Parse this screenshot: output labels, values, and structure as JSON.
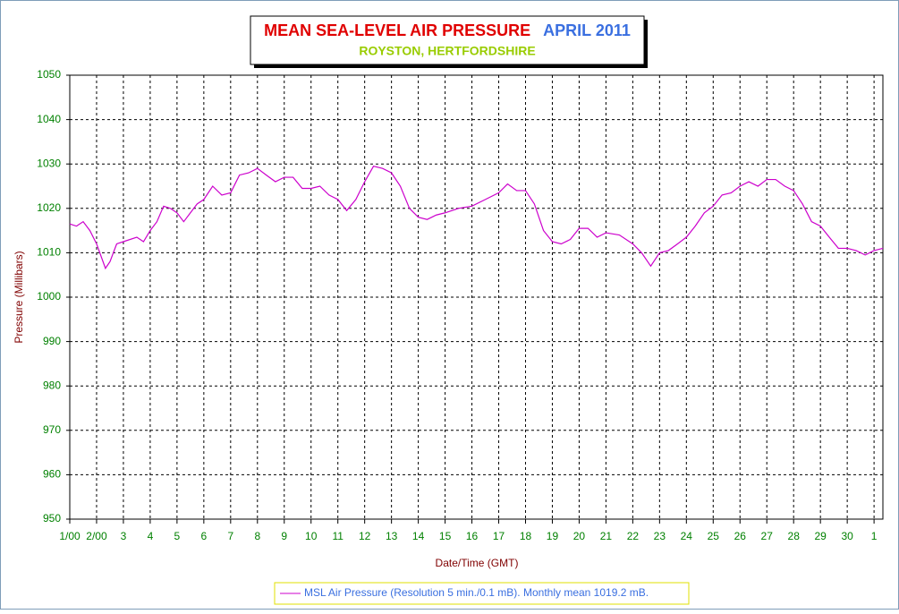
{
  "chart_data": {
    "type": "line",
    "title": "MEAN SEA-LEVEL AIR PRESSURE",
    "title_date": "APRIL 2011",
    "subtitle": "ROYSTON, HERTFORDSHIRE",
    "ylabel": "Pressure (Millibars)",
    "xlabel": "Date/Time (GMT)",
    "grid": true,
    "xlim": [
      0,
      30.33
    ],
    "ylim": [
      950,
      1050
    ],
    "yticks": [
      950,
      960,
      970,
      980,
      990,
      1000,
      1010,
      1020,
      1030,
      1040,
      1050
    ],
    "xticks": [
      {
        "value": 0,
        "label": "1/00"
      },
      {
        "value": 1,
        "label": "2/00"
      },
      {
        "value": 2,
        "label": "3"
      },
      {
        "value": 3,
        "label": "4"
      },
      {
        "value": 4,
        "label": "5"
      },
      {
        "value": 5,
        "label": "6"
      },
      {
        "value": 6,
        "label": "7"
      },
      {
        "value": 7,
        "label": "8"
      },
      {
        "value": 8,
        "label": "9"
      },
      {
        "value": 9,
        "label": "10"
      },
      {
        "value": 10,
        "label": "11"
      },
      {
        "value": 11,
        "label": "12"
      },
      {
        "value": 12,
        "label": "13"
      },
      {
        "value": 13,
        "label": "14"
      },
      {
        "value": 14,
        "label": "15"
      },
      {
        "value": 15,
        "label": "16"
      },
      {
        "value": 16,
        "label": "17"
      },
      {
        "value": 17,
        "label": "18"
      },
      {
        "value": 18,
        "label": "19"
      },
      {
        "value": 19,
        "label": "20"
      },
      {
        "value": 20,
        "label": "21"
      },
      {
        "value": 21,
        "label": "22"
      },
      {
        "value": 22,
        "label": "23"
      },
      {
        "value": 23,
        "label": "24"
      },
      {
        "value": 24,
        "label": "25"
      },
      {
        "value": 25,
        "label": "26"
      },
      {
        "value": 26,
        "label": "27"
      },
      {
        "value": 27,
        "label": "28"
      },
      {
        "value": 28,
        "label": "29"
      },
      {
        "value": 29,
        "label": "30"
      },
      {
        "value": 30,
        "label": "1"
      }
    ],
    "x": [
      0,
      0.25,
      0.5,
      0.75,
      1,
      1.33,
      1.5,
      1.75,
      2,
      2.5,
      2.75,
      3,
      3.25,
      3.5,
      3.75,
      4,
      4.25,
      4.5,
      4.75,
      5,
      5.33,
      5.67,
      6,
      6.33,
      6.67,
      7,
      7.33,
      7.67,
      8,
      8.33,
      8.67,
      9,
      9.33,
      9.67,
      10,
      10.33,
      10.67,
      11,
      11.33,
      11.67,
      12,
      12.33,
      12.67,
      13,
      13.33,
      13.67,
      14,
      14.5,
      15,
      15.5,
      16,
      16.33,
      16.67,
      17,
      17.33,
      17.67,
      18,
      18.33,
      18.67,
      19,
      19.33,
      19.67,
      20,
      20.5,
      21,
      21.33,
      21.67,
      22,
      22.33,
      22.67,
      23,
      23.33,
      23.67,
      24,
      24.33,
      24.67,
      25,
      25.33,
      25.67,
      26,
      26.33,
      26.67,
      27,
      27.33,
      27.67,
      28,
      28.33,
      28.67,
      29,
      29.33,
      29.67,
      30,
      30.33
    ],
    "series": [
      {
        "name": "MSL Air Pressure (Resolution 5 min./0.1 mB). Monthly mean 1019.2 mB.",
        "color": "#cc00cc",
        "values": [
          1016.5,
          1016,
          1017,
          1015,
          1012,
          1006.5,
          1008,
          1012,
          1012.5,
          1013.5,
          1012.5,
          1015,
          1017,
          1020.5,
          1020,
          1019,
          1017,
          1019,
          1021,
          1022,
          1025,
          1023,
          1023.5,
          1027.5,
          1028,
          1029,
          1027.5,
          1026,
          1027,
          1027,
          1024.5,
          1024.5,
          1025,
          1023,
          1022,
          1019.5,
          1022,
          1026,
          1029.5,
          1029,
          1028,
          1025,
          1020,
          1018,
          1017.5,
          1018.5,
          1019,
          1020,
          1020.5,
          1022,
          1023.5,
          1025.5,
          1024,
          1024,
          1021,
          1015,
          1012.5,
          1012,
          1013,
          1015.5,
          1015.5,
          1013.5,
          1014.5,
          1014,
          1012,
          1010,
          1007,
          1010,
          1010.5,
          1012,
          1013.5,
          1016,
          1019,
          1020.5,
          1023,
          1023.5,
          1025,
          1026,
          1025,
          1026.5,
          1026.5,
          1025,
          1024,
          1021,
          1017,
          1016,
          1013.5,
          1011,
          1011,
          1010.5,
          1009.5,
          1010.5,
          1011
        ]
      }
    ]
  }
}
